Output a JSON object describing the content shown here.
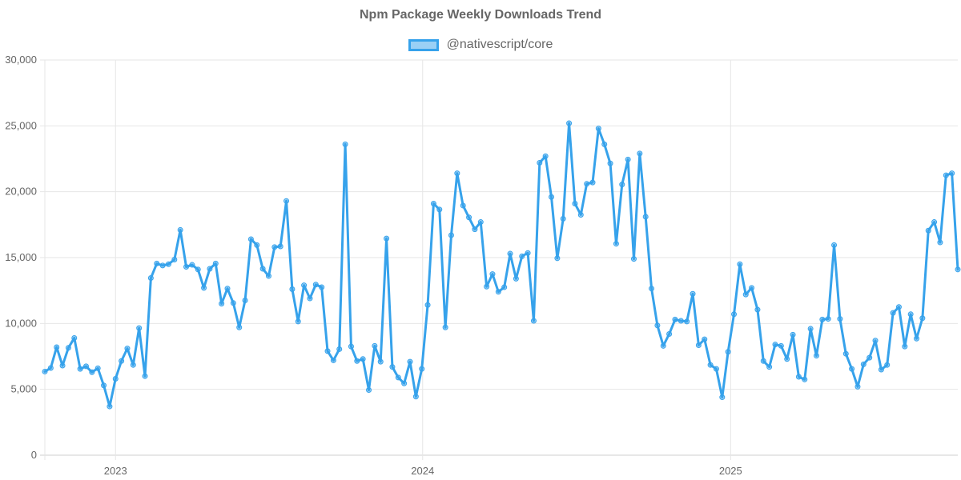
{
  "chart_data": {
    "type": "line",
    "title": "Npm Package Weekly Downloads Trend",
    "legend_position": "top",
    "series": [
      {
        "name": "@nativescript/core",
        "color": "#36a2eb",
        "fill": "rgba(54,162,235,0.5)",
        "values": [
          6350,
          6620,
          8200,
          6800,
          8150,
          8900,
          6550,
          6750,
          6300,
          6600,
          5300,
          3700,
          5800,
          7150,
          8100,
          6850,
          9650,
          6000,
          13450,
          14550,
          14400,
          14500,
          14850,
          17100,
          14300,
          14450,
          14100,
          12700,
          14150,
          14550,
          11500,
          12650,
          11550,
          9700,
          11750,
          16400,
          15950,
          14150,
          13600,
          15800,
          15850,
          19300,
          12600,
          10150,
          12900,
          11900,
          12950,
          12750,
          7900,
          7200,
          8050,
          23600,
          8250,
          7150,
          7300,
          4950,
          8300,
          7100,
          16450,
          6700,
          5900,
          5450,
          7100,
          4450,
          6550,
          11400,
          19100,
          18650,
          9700,
          16700,
          21400,
          18950,
          18050,
          17150,
          17700,
          12800,
          13750,
          12400,
          12750,
          15300,
          13400,
          15100,
          15350,
          10200,
          22200,
          22700,
          19600,
          14950,
          17950,
          25200,
          19100,
          18250,
          20600,
          20700,
          24800,
          23600,
          22150,
          16050,
          20550,
          22450,
          14900,
          22900,
          18100,
          12650,
          9850,
          8300,
          9200,
          10300,
          10200,
          10150,
          12250,
          8350,
          8800,
          6850,
          6550,
          4400,
          7850,
          10700,
          14500,
          12200,
          12700,
          11050,
          7150,
          6700,
          8400,
          8300,
          7300,
          9150,
          5950,
          5750,
          9600,
          7550,
          10300,
          10350,
          15950,
          10350,
          7700,
          6550,
          5200,
          6900,
          7400,
          8700,
          6500,
          6850,
          10800,
          11250,
          8250,
          10700,
          8850,
          10400,
          17050,
          17700,
          16150,
          21250,
          21400,
          14100
        ]
      }
    ],
    "x_start": "2022-10-09",
    "x_interval": "weekly",
    "x_ticks": [
      "2023",
      "2024",
      "2025"
    ],
    "ylim": [
      0,
      30000
    ],
    "y_ticks": [
      "0",
      "5,000",
      "10,000",
      "15,000",
      "20,000",
      "25,000",
      "30,000"
    ],
    "xlabel": "",
    "ylabel": "",
    "grid": true
  }
}
